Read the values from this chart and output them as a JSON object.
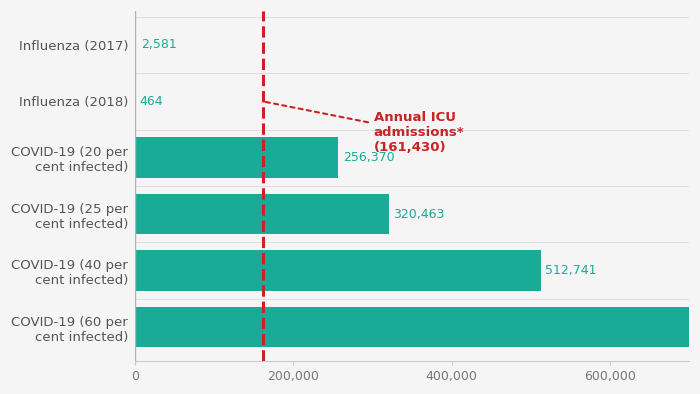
{
  "categories": [
    "COVID-19 (60 per\ncent infected)",
    "COVID-19 (40 per\ncent infected)",
    "COVID-19 (25 per\ncent infected)",
    "COVID-19 (20 per\ncent infected)",
    "Influenza (2018)",
    "Influenza (2017)"
  ],
  "values": [
    769116,
    512741,
    320463,
    256370,
    464,
    2581
  ],
  "is_influenza": [
    false,
    false,
    false,
    false,
    true,
    true
  ],
  "bar_color": "#1aab97",
  "value_labels": [
    "",
    "512,741",
    "320,463",
    "256,370",
    "464",
    "2,581"
  ],
  "vline_x": 161430,
  "vline_color": "#cc2222",
  "annotation_text": "Annual ICU\nadmissions*\n(161,430)",
  "annotation_color": "#cc2222",
  "xlim": [
    0,
    700000
  ],
  "xticks": [
    0,
    200000,
    400000,
    600000
  ],
  "xticklabels": [
    "0",
    "200,000",
    "400,000",
    "600,000"
  ],
  "background_color": "#f5f5f5",
  "bar_height": 0.72,
  "figsize": [
    7.0,
    3.94
  ],
  "dpi": 100
}
